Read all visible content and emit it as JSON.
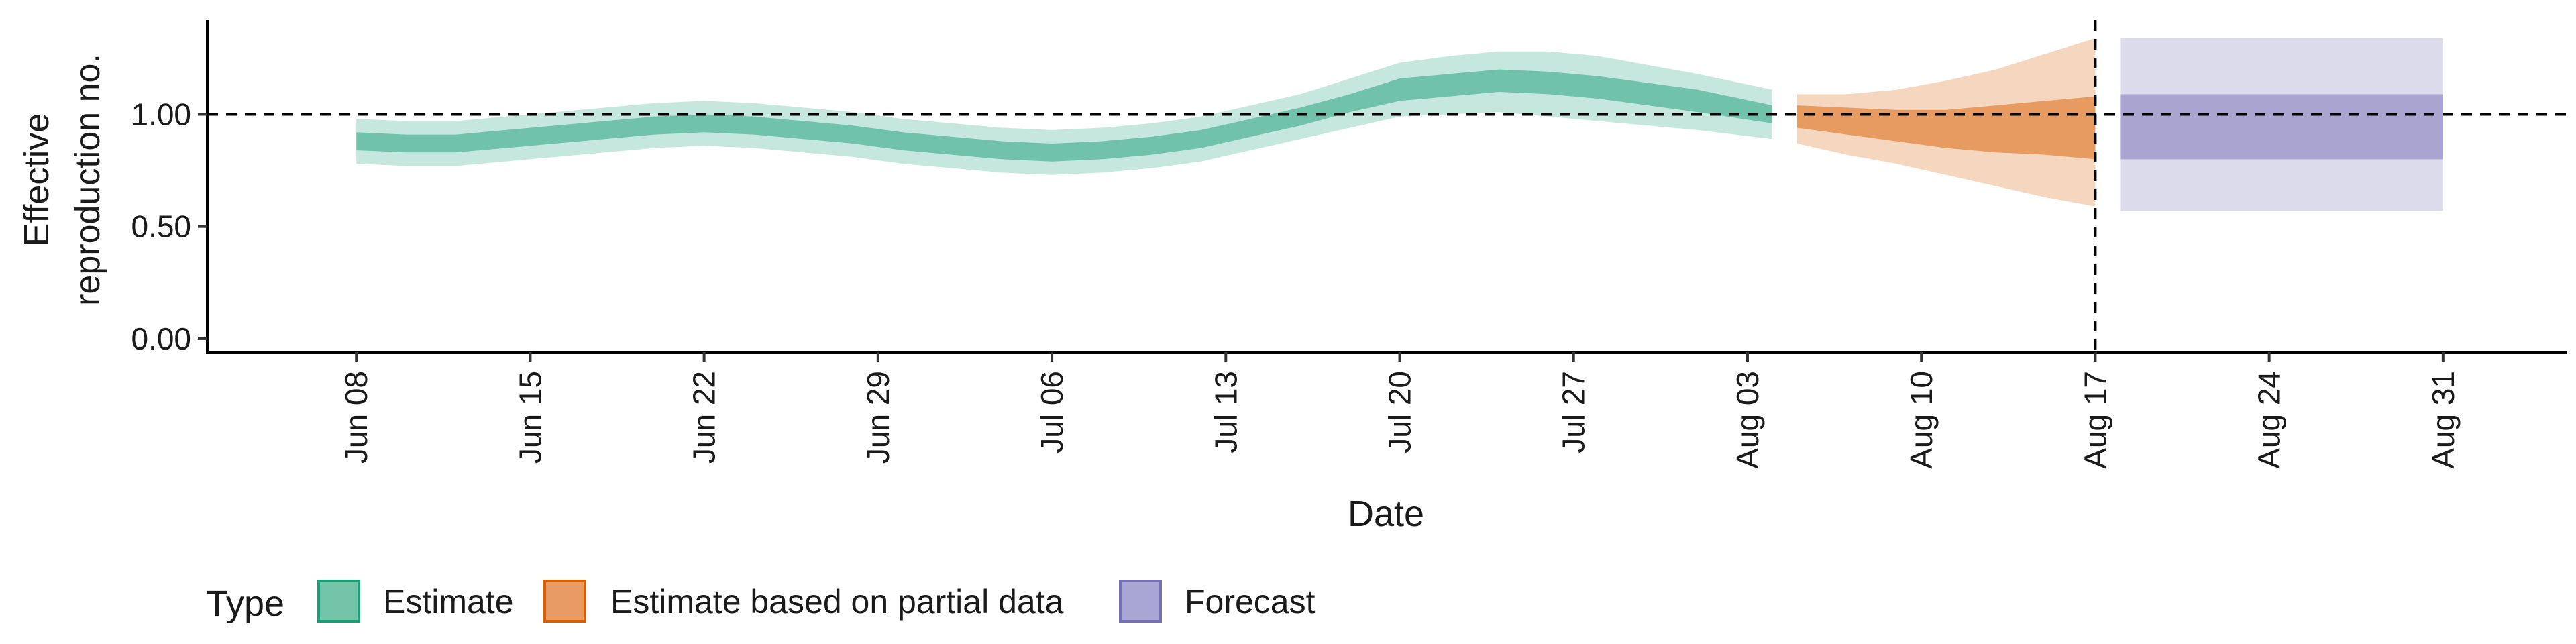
{
  "chart_data": {
    "type": "area",
    "title": "",
    "xlabel": "Date",
    "ylabel": [
      "Effective",
      "reproduction no."
    ],
    "ylim": [
      -0.06,
      1.42
    ],
    "xlim": [
      "2020-06-02",
      "2020-09-05"
    ],
    "x_ticks": [
      {
        "date": "2020-06-08",
        "label": "Jun 08"
      },
      {
        "date": "2020-06-15",
        "label": "Jun 15"
      },
      {
        "date": "2020-06-22",
        "label": "Jun 22"
      },
      {
        "date": "2020-06-29",
        "label": "Jun 29"
      },
      {
        "date": "2020-07-06",
        "label": "Jul 06"
      },
      {
        "date": "2020-07-13",
        "label": "Jul 13"
      },
      {
        "date": "2020-07-20",
        "label": "Jul 20"
      },
      {
        "date": "2020-07-27",
        "label": "Jul 27"
      },
      {
        "date": "2020-08-03",
        "label": "Aug 03"
      },
      {
        "date": "2020-08-10",
        "label": "Aug 10"
      },
      {
        "date": "2020-08-17",
        "label": "Aug 17"
      },
      {
        "date": "2020-08-24",
        "label": "Aug 24"
      },
      {
        "date": "2020-08-31",
        "label": "Aug 31"
      }
    ],
    "y_ticks": [
      {
        "value": 0.0,
        "label": "0.00"
      },
      {
        "value": 0.5,
        "label": "0.50"
      },
      {
        "value": 1.0,
        "label": "1.00"
      }
    ],
    "reference_lines": {
      "horizontal": 1.0,
      "vertical": "2020-08-17"
    },
    "grid": false,
    "legend": {
      "title": "Type",
      "position": "bottom-left",
      "items": [
        {
          "label": "Estimate",
          "fill": "#72c3a7",
          "stroke": "#1b9e77"
        },
        {
          "label": "Estimate based on partial data",
          "fill": "#e89c63",
          "stroke": "#d95f02"
        },
        {
          "label": "Forecast",
          "fill": "#aaa6d3",
          "stroke": "#7570b3"
        }
      ]
    },
    "series": [
      {
        "name": "Estimate",
        "color": "#1b9e77",
        "x": [
          "2020-06-08",
          "2020-06-10",
          "2020-06-12",
          "2020-06-14",
          "2020-06-16",
          "2020-06-18",
          "2020-06-20",
          "2020-06-22",
          "2020-06-24",
          "2020-06-26",
          "2020-06-28",
          "2020-06-30",
          "2020-07-02",
          "2020-07-04",
          "2020-07-06",
          "2020-07-08",
          "2020-07-10",
          "2020-07-12",
          "2020-07-14",
          "2020-07-16",
          "2020-07-18",
          "2020-07-20",
          "2020-07-22",
          "2020-07-24",
          "2020-07-26",
          "2020-07-28",
          "2020-07-30",
          "2020-08-01",
          "2020-08-04"
        ],
        "median": [
          0.88,
          0.87,
          0.87,
          0.89,
          0.91,
          0.93,
          0.95,
          0.96,
          0.95,
          0.93,
          0.91,
          0.88,
          0.86,
          0.84,
          0.83,
          0.84,
          0.86,
          0.89,
          0.94,
          0.99,
          1.05,
          1.11,
          1.13,
          1.15,
          1.14,
          1.12,
          1.09,
          1.06,
          1.0
        ],
        "lower_90": [
          0.78,
          0.77,
          0.77,
          0.79,
          0.81,
          0.83,
          0.85,
          0.86,
          0.85,
          0.83,
          0.81,
          0.78,
          0.76,
          0.74,
          0.73,
          0.74,
          0.76,
          0.79,
          0.84,
          0.89,
          0.94,
          0.99,
          1.0,
          1.01,
          0.99,
          0.97,
          0.95,
          0.93,
          0.89
        ],
        "upper_90": [
          0.98,
          0.97,
          0.97,
          0.99,
          1.01,
          1.03,
          1.05,
          1.06,
          1.05,
          1.03,
          1.01,
          0.98,
          0.96,
          0.94,
          0.93,
          0.94,
          0.96,
          0.99,
          1.04,
          1.09,
          1.16,
          1.23,
          1.26,
          1.28,
          1.28,
          1.26,
          1.22,
          1.18,
          1.11
        ],
        "lower_50": [
          0.84,
          0.83,
          0.83,
          0.85,
          0.87,
          0.89,
          0.91,
          0.92,
          0.91,
          0.89,
          0.87,
          0.84,
          0.82,
          0.8,
          0.79,
          0.8,
          0.82,
          0.85,
          0.9,
          0.95,
          1.01,
          1.06,
          1.08,
          1.1,
          1.09,
          1.07,
          1.04,
          1.01,
          0.96
        ],
        "upper_50": [
          0.92,
          0.91,
          0.91,
          0.93,
          0.95,
          0.97,
          0.99,
          1.0,
          0.99,
          0.97,
          0.95,
          0.92,
          0.9,
          0.88,
          0.87,
          0.88,
          0.9,
          0.93,
          0.98,
          1.03,
          1.09,
          1.16,
          1.18,
          1.2,
          1.19,
          1.17,
          1.14,
          1.11,
          1.04
        ]
      },
      {
        "name": "Estimate based on partial data",
        "color": "#d95f02",
        "x": [
          "2020-08-05",
          "2020-08-07",
          "2020-08-09",
          "2020-08-11",
          "2020-08-13",
          "2020-08-15",
          "2020-08-17"
        ],
        "median": [
          0.99,
          0.97,
          0.96,
          0.96,
          0.96,
          0.95,
          0.95
        ],
        "lower_90": [
          0.87,
          0.82,
          0.78,
          0.73,
          0.68,
          0.63,
          0.59
        ],
        "upper_90": [
          1.09,
          1.09,
          1.11,
          1.15,
          1.2,
          1.27,
          1.34
        ],
        "lower_50": [
          0.94,
          0.91,
          0.88,
          0.85,
          0.83,
          0.82,
          0.8
        ],
        "upper_50": [
          1.04,
          1.03,
          1.02,
          1.02,
          1.04,
          1.06,
          1.08
        ]
      },
      {
        "name": "Forecast",
        "color": "#7570b3",
        "x": [
          "2020-08-18",
          "2020-08-31"
        ],
        "median": [
          0.94,
          0.94
        ],
        "lower_90": [
          0.57,
          0.57
        ],
        "upper_90": [
          1.34,
          1.34
        ],
        "lower_50": [
          0.8,
          0.8
        ],
        "upper_50": [
          1.09,
          1.09
        ]
      }
    ]
  }
}
